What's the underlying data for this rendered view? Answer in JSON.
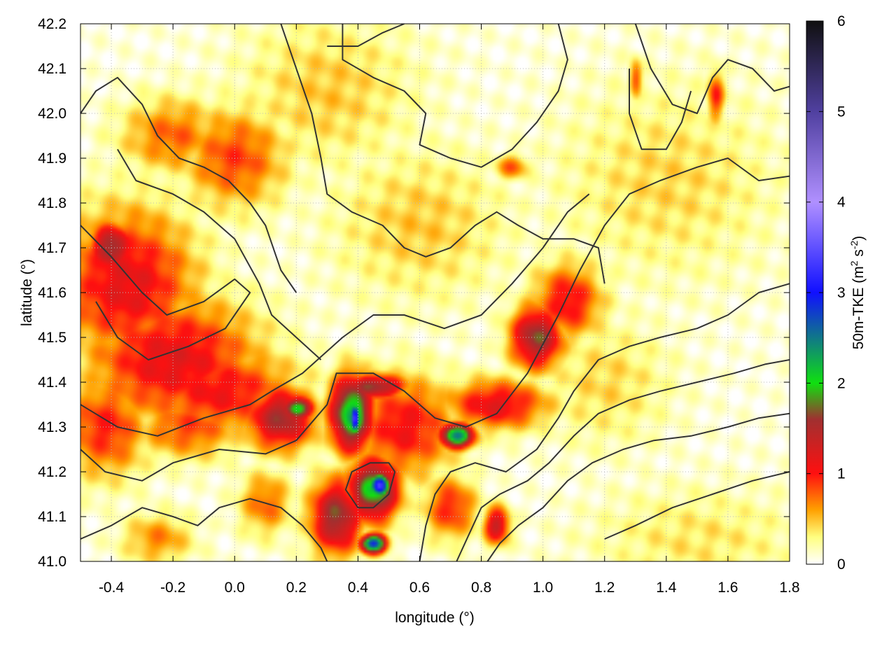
{
  "chart_data": {
    "type": "heatmap",
    "title": "",
    "xlabel": "longitude (°)",
    "ylabel": "latitude (°)",
    "xlim": [
      -0.5,
      1.8
    ],
    "ylim": [
      41.0,
      42.2
    ],
    "x_ticks": [
      {
        "value": -0.4,
        "label": "-0.4"
      },
      {
        "value": -0.2,
        "label": "-0.2"
      },
      {
        "value": 0.0,
        "label": "0.0"
      },
      {
        "value": 0.2,
        "label": "0.2"
      },
      {
        "value": 0.4,
        "label": "0.4"
      },
      {
        "value": 0.6,
        "label": "0.6"
      },
      {
        "value": 0.8,
        "label": "0.8"
      },
      {
        "value": 1.0,
        "label": "1.0"
      },
      {
        "value": 1.2,
        "label": "1.2"
      },
      {
        "value": 1.4,
        "label": "1.4"
      },
      {
        "value": 1.6,
        "label": "1.6"
      },
      {
        "value": 1.8,
        "label": "1.8"
      }
    ],
    "y_ticks": [
      {
        "value": 41.0,
        "label": "41.0"
      },
      {
        "value": 41.1,
        "label": "41.1"
      },
      {
        "value": 41.2,
        "label": "41.2"
      },
      {
        "value": 41.3,
        "label": "41.3"
      },
      {
        "value": 41.4,
        "label": "41.4"
      },
      {
        "value": 41.5,
        "label": "41.5"
      },
      {
        "value": 41.6,
        "label": "41.6"
      },
      {
        "value": 41.7,
        "label": "41.7"
      },
      {
        "value": 41.8,
        "label": "41.8"
      },
      {
        "value": 41.9,
        "label": "41.9"
      },
      {
        "value": 42.0,
        "label": "42.0"
      },
      {
        "value": 42.1,
        "label": "42.1"
      },
      {
        "value": 42.2,
        "label": "42.2"
      }
    ],
    "grid": true,
    "colorbar": {
      "label": "50m-TKE (m² s⁻²)",
      "label_main": "50m-TKE (m",
      "label_sup1": "2",
      "label_mid": " s",
      "label_sup2": "-2",
      "label_end": ")",
      "range": [
        0,
        6
      ],
      "ticks": [
        {
          "value": 0,
          "label": "0"
        },
        {
          "value": 1,
          "label": "1"
        },
        {
          "value": 2,
          "label": "2"
        },
        {
          "value": 3,
          "label": "3"
        },
        {
          "value": 4,
          "label": "4"
        },
        {
          "value": 5,
          "label": "5"
        },
        {
          "value": 6,
          "label": "6"
        }
      ],
      "stops": [
        {
          "value": 0.0,
          "color": "#ffffff"
        },
        {
          "value": 0.3,
          "color": "#ffff80"
        },
        {
          "value": 0.6,
          "color": "#ffa000"
        },
        {
          "value": 1.0,
          "color": "#ff1010"
        },
        {
          "value": 1.6,
          "color": "#a03030"
        },
        {
          "value": 2.0,
          "color": "#10e010"
        },
        {
          "value": 3.0,
          "color": "#1010ff"
        },
        {
          "value": 4.0,
          "color": "#b090ff"
        },
        {
          "value": 5.0,
          "color": "#5040a0"
        },
        {
          "value": 6.0,
          "color": "#101010"
        }
      ]
    },
    "hotspots": [
      {
        "lon": -0.35,
        "lat": 41.62,
        "value": 1.1,
        "sx": 0.16,
        "sy": 0.12
      },
      {
        "lon": -0.2,
        "lat": 41.45,
        "value": 1.1,
        "sx": 0.2,
        "sy": 0.1
      },
      {
        "lon": -0.05,
        "lat": 41.38,
        "value": 1.0,
        "sx": 0.18,
        "sy": 0.07
      },
      {
        "lon": -0.4,
        "lat": 41.7,
        "value": 1.6,
        "sx": 0.05,
        "sy": 0.04
      },
      {
        "lon": -0.42,
        "lat": 41.3,
        "value": 0.9,
        "sx": 0.1,
        "sy": 0.08
      },
      {
        "lon": -0.15,
        "lat": 41.3,
        "value": 0.8,
        "sx": 0.12,
        "sy": 0.05
      },
      {
        "lon": 0.15,
        "lat": 41.32,
        "value": 1.5,
        "sx": 0.08,
        "sy": 0.05
      },
      {
        "lon": 0.2,
        "lat": 41.34,
        "value": 2.0,
        "sx": 0.04,
        "sy": 0.02
      },
      {
        "lon": 0.38,
        "lat": 41.33,
        "value": 2.2,
        "sx": 0.05,
        "sy": 0.06
      },
      {
        "lon": 0.39,
        "lat": 41.32,
        "value": 3.2,
        "sx": 0.015,
        "sy": 0.03
      },
      {
        "lon": 0.45,
        "lat": 41.39,
        "value": 1.6,
        "sx": 0.08,
        "sy": 0.02
      },
      {
        "lon": 0.45,
        "lat": 41.16,
        "value": 2.0,
        "sx": 0.06,
        "sy": 0.05
      },
      {
        "lon": 0.47,
        "lat": 41.17,
        "value": 3.4,
        "sx": 0.025,
        "sy": 0.02
      },
      {
        "lon": 0.45,
        "lat": 41.04,
        "value": 2.8,
        "sx": 0.03,
        "sy": 0.015
      },
      {
        "lon": 0.33,
        "lat": 41.1,
        "value": 1.6,
        "sx": 0.06,
        "sy": 0.06
      },
      {
        "lon": 0.55,
        "lat": 41.3,
        "value": 1.0,
        "sx": 0.12,
        "sy": 0.08
      },
      {
        "lon": 0.72,
        "lat": 41.28,
        "value": 2.4,
        "sx": 0.04,
        "sy": 0.02
      },
      {
        "lon": 0.85,
        "lat": 41.35,
        "value": 1.1,
        "sx": 0.12,
        "sy": 0.04
      },
      {
        "lon": 0.98,
        "lat": 41.5,
        "value": 1.6,
        "sx": 0.06,
        "sy": 0.05
      },
      {
        "lon": 1.08,
        "lat": 41.58,
        "value": 1.0,
        "sx": 0.08,
        "sy": 0.06
      },
      {
        "lon": 0.85,
        "lat": 41.08,
        "value": 1.3,
        "sx": 0.03,
        "sy": 0.03
      },
      {
        "lon": 0.7,
        "lat": 41.12,
        "value": 0.9,
        "sx": 0.06,
        "sy": 0.05
      },
      {
        "lon": 0.0,
        "lat": 41.9,
        "value": 0.8,
        "sx": 0.12,
        "sy": 0.08
      },
      {
        "lon": -0.2,
        "lat": 41.95,
        "value": 0.7,
        "sx": 0.12,
        "sy": 0.06
      },
      {
        "lon": 0.1,
        "lat": 41.13,
        "value": 0.7,
        "sx": 0.06,
        "sy": 0.05
      },
      {
        "lon": -0.25,
        "lat": 41.05,
        "value": 0.6,
        "sx": 0.08,
        "sy": 0.04
      },
      {
        "lon": 1.56,
        "lat": 42.04,
        "value": 0.9,
        "sx": 0.02,
        "sy": 0.04
      },
      {
        "lon": 1.3,
        "lat": 42.08,
        "value": 0.8,
        "sx": 0.015,
        "sy": 0.03
      },
      {
        "lon": 0.9,
        "lat": 41.88,
        "value": 0.7,
        "sx": 0.04,
        "sy": 0.02
      },
      {
        "lon": 0.6,
        "lat": 41.75,
        "value": 0.4,
        "sx": 0.2,
        "sy": 0.12
      },
      {
        "lon": 1.4,
        "lat": 41.85,
        "value": 0.35,
        "sx": 0.25,
        "sy": 0.15
      },
      {
        "lon": 1.5,
        "lat": 41.05,
        "value": 0.3,
        "sx": 0.25,
        "sy": 0.08
      },
      {
        "lon": 0.3,
        "lat": 42.05,
        "value": 0.4,
        "sx": 0.2,
        "sy": 0.12
      },
      {
        "lon": 1.2,
        "lat": 41.4,
        "value": 0.35,
        "sx": 0.15,
        "sy": 0.1
      }
    ],
    "contours": [
      [
        [
          -0.5,
          41.25
        ],
        [
          -0.42,
          41.2
        ],
        [
          -0.3,
          41.18
        ],
        [
          -0.2,
          41.22
        ],
        [
          -0.05,
          41.25
        ],
        [
          0.1,
          41.24
        ],
        [
          0.2,
          41.27
        ],
        [
          0.3,
          41.35
        ],
        [
          0.33,
          41.42
        ],
        [
          0.45,
          41.42
        ],
        [
          0.55,
          41.38
        ],
        [
          0.65,
          41.32
        ],
        [
          0.75,
          41.3
        ],
        [
          0.85,
          41.33
        ],
        [
          0.95,
          41.42
        ],
        [
          1.05,
          41.55
        ],
        [
          1.12,
          41.65
        ],
        [
          1.2,
          41.75
        ],
        [
          1.28,
          41.82
        ],
        [
          1.38,
          41.85
        ],
        [
          1.5,
          41.88
        ],
        [
          1.6,
          41.9
        ],
        [
          1.7,
          41.85
        ],
        [
          1.8,
          41.86
        ]
      ],
      [
        [
          -0.5,
          41.35
        ],
        [
          -0.38,
          41.3
        ],
        [
          -0.25,
          41.28
        ],
        [
          -0.1,
          41.32
        ],
        [
          0.05,
          41.35
        ],
        [
          0.12,
          41.38
        ],
        [
          0.22,
          41.42
        ],
        [
          0.35,
          41.5
        ],
        [
          0.45,
          41.55
        ],
        [
          0.55,
          41.55
        ],
        [
          0.68,
          41.52
        ],
        [
          0.8,
          41.55
        ],
        [
          0.9,
          41.62
        ],
        [
          1.0,
          41.7
        ],
        [
          1.08,
          41.78
        ],
        [
          1.15,
          41.82
        ]
      ],
      [
        [
          -0.5,
          41.75
        ],
        [
          -0.4,
          41.68
        ],
        [
          -0.3,
          41.6
        ],
        [
          -0.22,
          41.55
        ],
        [
          -0.1,
          41.58
        ],
        [
          0.0,
          41.63
        ],
        [
          0.05,
          41.6
        ],
        [
          -0.03,
          41.52
        ],
        [
          -0.15,
          41.48
        ],
        [
          -0.28,
          41.45
        ],
        [
          -0.38,
          41.5
        ],
        [
          -0.45,
          41.58
        ]
      ],
      [
        [
          -0.5,
          42.0
        ],
        [
          -0.45,
          42.05
        ],
        [
          -0.38,
          42.08
        ],
        [
          -0.3,
          42.02
        ],
        [
          -0.25,
          41.95
        ],
        [
          -0.18,
          41.9
        ],
        [
          -0.1,
          41.88
        ],
        [
          -0.02,
          41.85
        ],
        [
          0.05,
          41.8
        ],
        [
          0.1,
          41.75
        ],
        [
          0.15,
          41.65
        ],
        [
          0.2,
          41.6
        ]
      ],
      [
        [
          -0.38,
          41.92
        ],
        [
          -0.32,
          41.85
        ],
        [
          -0.2,
          41.82
        ],
        [
          -0.1,
          41.78
        ],
        [
          0.0,
          41.72
        ],
        [
          0.08,
          41.62
        ],
        [
          0.12,
          41.55
        ],
        [
          0.2,
          41.5
        ],
        [
          0.28,
          41.45
        ]
      ],
      [
        [
          0.35,
          42.2
        ],
        [
          0.35,
          42.12
        ],
        [
          0.45,
          42.08
        ],
        [
          0.55,
          42.05
        ],
        [
          0.62,
          42.0
        ],
        [
          0.6,
          41.93
        ],
        [
          0.7,
          41.9
        ],
        [
          0.8,
          41.88
        ],
        [
          0.9,
          41.92
        ],
        [
          0.98,
          41.98
        ],
        [
          1.05,
          42.05
        ],
        [
          1.08,
          42.12
        ],
        [
          1.05,
          42.2
        ]
      ],
      [
        [
          0.15,
          42.2
        ],
        [
          0.2,
          42.1
        ],
        [
          0.25,
          42.0
        ],
        [
          0.28,
          41.9
        ],
        [
          0.3,
          41.82
        ],
        [
          0.38,
          41.78
        ],
        [
          0.48,
          41.75
        ],
        [
          0.55,
          41.7
        ],
        [
          0.62,
          41.68
        ],
        [
          0.7,
          41.7
        ],
        [
          0.78,
          41.75
        ],
        [
          0.85,
          41.78
        ],
        [
          0.92,
          41.75
        ],
        [
          1.0,
          41.72
        ],
        [
          1.1,
          41.72
        ],
        [
          1.18,
          41.7
        ],
        [
          1.2,
          41.62
        ]
      ],
      [
        [
          0.52,
          41.2
        ],
        [
          0.5,
          41.15
        ],
        [
          0.45,
          41.12
        ],
        [
          0.4,
          41.12
        ],
        [
          0.36,
          41.16
        ],
        [
          0.38,
          41.2
        ],
        [
          0.44,
          41.22
        ],
        [
          0.5,
          41.22
        ],
        [
          0.52,
          41.2
        ]
      ],
      [
        [
          0.6,
          41.0
        ],
        [
          0.62,
          41.08
        ],
        [
          0.65,
          41.15
        ],
        [
          0.7,
          41.2
        ],
        [
          0.78,
          41.22
        ],
        [
          0.88,
          41.2
        ],
        [
          0.98,
          41.25
        ],
        [
          1.05,
          41.32
        ],
        [
          1.1,
          41.38
        ],
        [
          1.18,
          41.45
        ],
        [
          1.28,
          41.48
        ],
        [
          1.38,
          41.5
        ],
        [
          1.5,
          41.52
        ],
        [
          1.6,
          41.55
        ],
        [
          1.7,
          41.6
        ],
        [
          1.8,
          41.62
        ]
      ],
      [
        [
          0.72,
          41.0
        ],
        [
          0.76,
          41.06
        ],
        [
          0.8,
          41.12
        ],
        [
          0.86,
          41.15
        ],
        [
          0.95,
          41.18
        ],
        [
          1.02,
          41.22
        ],
        [
          1.1,
          41.28
        ],
        [
          1.18,
          41.33
        ],
        [
          1.28,
          41.36
        ],
        [
          1.38,
          41.38
        ],
        [
          1.5,
          41.4
        ],
        [
          1.62,
          41.42
        ],
        [
          1.72,
          41.44
        ],
        [
          1.8,
          41.45
        ]
      ],
      [
        [
          0.82,
          41.0
        ],
        [
          0.86,
          41.04
        ],
        [
          0.92,
          41.08
        ],
        [
          1.0,
          41.12
        ],
        [
          1.08,
          41.18
        ],
        [
          1.16,
          41.22
        ],
        [
          1.26,
          41.25
        ],
        [
          1.36,
          41.27
        ],
        [
          1.48,
          41.28
        ],
        [
          1.6,
          41.3
        ],
        [
          1.7,
          41.32
        ],
        [
          1.8,
          41.33
        ]
      ],
      [
        [
          1.2,
          41.05
        ],
        [
          1.3,
          41.08
        ],
        [
          1.42,
          41.12
        ],
        [
          1.55,
          41.15
        ],
        [
          1.68,
          41.18
        ],
        [
          1.8,
          41.2
        ]
      ],
      [
        [
          -0.5,
          41.05
        ],
        [
          -0.4,
          41.08
        ],
        [
          -0.3,
          41.12
        ],
        [
          -0.2,
          41.1
        ],
        [
          -0.12,
          41.08
        ],
        [
          -0.05,
          41.12
        ],
        [
          0.05,
          41.14
        ],
        [
          0.15,
          41.12
        ],
        [
          0.22,
          41.08
        ],
        [
          0.28,
          41.03
        ],
        [
          0.3,
          41.0
        ]
      ],
      [
        [
          1.3,
          42.2
        ],
        [
          1.35,
          42.1
        ],
        [
          1.42,
          42.02
        ],
        [
          1.5,
          42.0
        ],
        [
          1.55,
          42.08
        ],
        [
          1.6,
          42.12
        ],
        [
          1.68,
          42.1
        ],
        [
          1.75,
          42.05
        ],
        [
          1.8,
          42.06
        ]
      ],
      [
        [
          1.28,
          42.1
        ],
        [
          1.28,
          42.0
        ],
        [
          1.32,
          41.92
        ],
        [
          1.4,
          41.92
        ],
        [
          1.45,
          41.98
        ],
        [
          1.48,
          42.05
        ]
      ],
      [
        [
          0.3,
          42.15
        ],
        [
          0.4,
          42.15
        ],
        [
          0.48,
          42.18
        ],
        [
          0.55,
          42.2
        ]
      ]
    ]
  }
}
